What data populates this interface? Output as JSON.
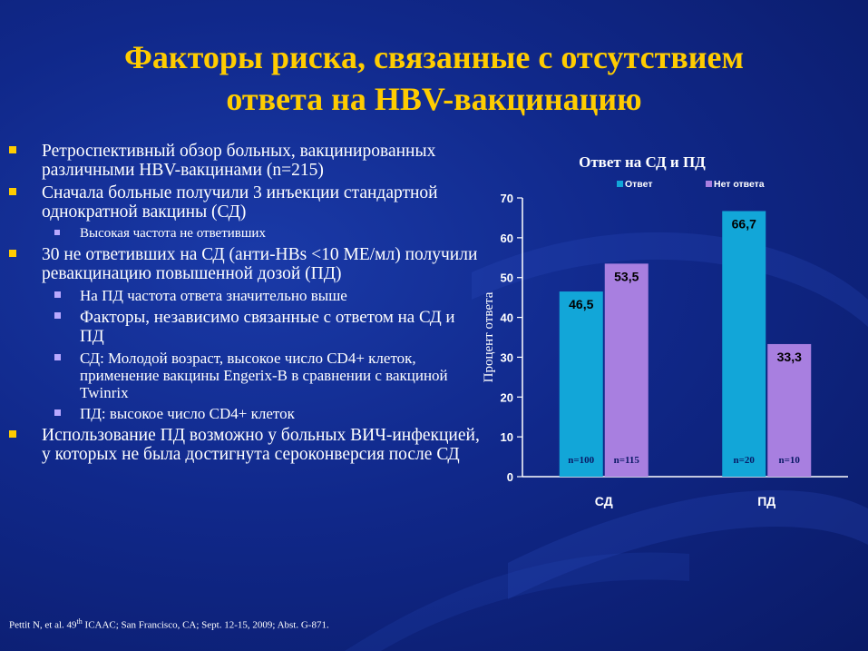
{
  "slide": {
    "title_line1": "Факторы риска, связанные с отсутствием",
    "title_line2": "ответа на HBV-вакцинацию",
    "colors": {
      "title": "#ffcc00",
      "background": "#10288a",
      "series1": "#12a6d8",
      "series2": "#a87fe0",
      "bullet_l1": "#ffcc00",
      "bullet_l2": "#b9a8ff"
    }
  },
  "bullets": [
    {
      "level": 1,
      "text": "Ретроспективный обзор больных, вакцинированных различными HBV-вакцинами (n=215)"
    },
    {
      "level": 1,
      "text": "Сначала больные получили 3 инъекции стандартной однократной вакцины (СД)"
    },
    {
      "level": 2,
      "size": "small",
      "text": "Высокая частота не ответивших"
    },
    {
      "level": 1,
      "text": "30 не ответивших на СД (анти-HBs <10 МЕ/мл) получили ревакцинацию повышенной дозой (ПД)"
    },
    {
      "level": 2,
      "size": "normal",
      "text": "На ПД частота ответа значительно выше"
    },
    {
      "level": 2,
      "size": "large",
      "text": "Факторы, независимо связанные с ответом на СД и ПД"
    },
    {
      "level": 2,
      "size": "normal",
      "text": "СД:  Молодой возраст,  высокое число CD4+ клеток, применение вакцины Engerix-B  в сравнении с вакциной Twinrix"
    },
    {
      "level": 2,
      "size": "normal",
      "text": "ПД: высокое число CD4+ клеток"
    },
    {
      "level": 1,
      "text": "Использование ПД возможно у больных ВИЧ-инфекцией, у которых не была достигнута сероконверсия после СД"
    }
  ],
  "footnote": {
    "pre": "Pettit N, et al. 49",
    "sup": "th",
    "post": " ICAAC; San Francisco, CA; Sept. 12-15, 2009; Abst. G-871."
  },
  "chart_data": {
    "type": "bar",
    "title": "Ответ на СД и ПД",
    "ylabel": "Процент ответа",
    "xlabel": "",
    "categories": [
      "СД",
      "ПД"
    ],
    "series": [
      {
        "name": "Ответ",
        "values": [
          46.5,
          66.7
        ],
        "labels": [
          "46,5",
          "66,7"
        ],
        "n": [
          "n=100",
          "n=20"
        ],
        "color": "#12a6d8"
      },
      {
        "name": "Нет ответа",
        "values": [
          53.5,
          33.3
        ],
        "labels": [
          "53,5",
          "33,3"
        ],
        "n": [
          "n=115",
          "n=10"
        ],
        "color": "#a87fe0"
      }
    ],
    "ylim": [
      0,
      70
    ],
    "yticks": [
      0,
      10,
      20,
      30,
      40,
      50,
      60,
      70
    ],
    "grid": false,
    "legend": "top"
  }
}
